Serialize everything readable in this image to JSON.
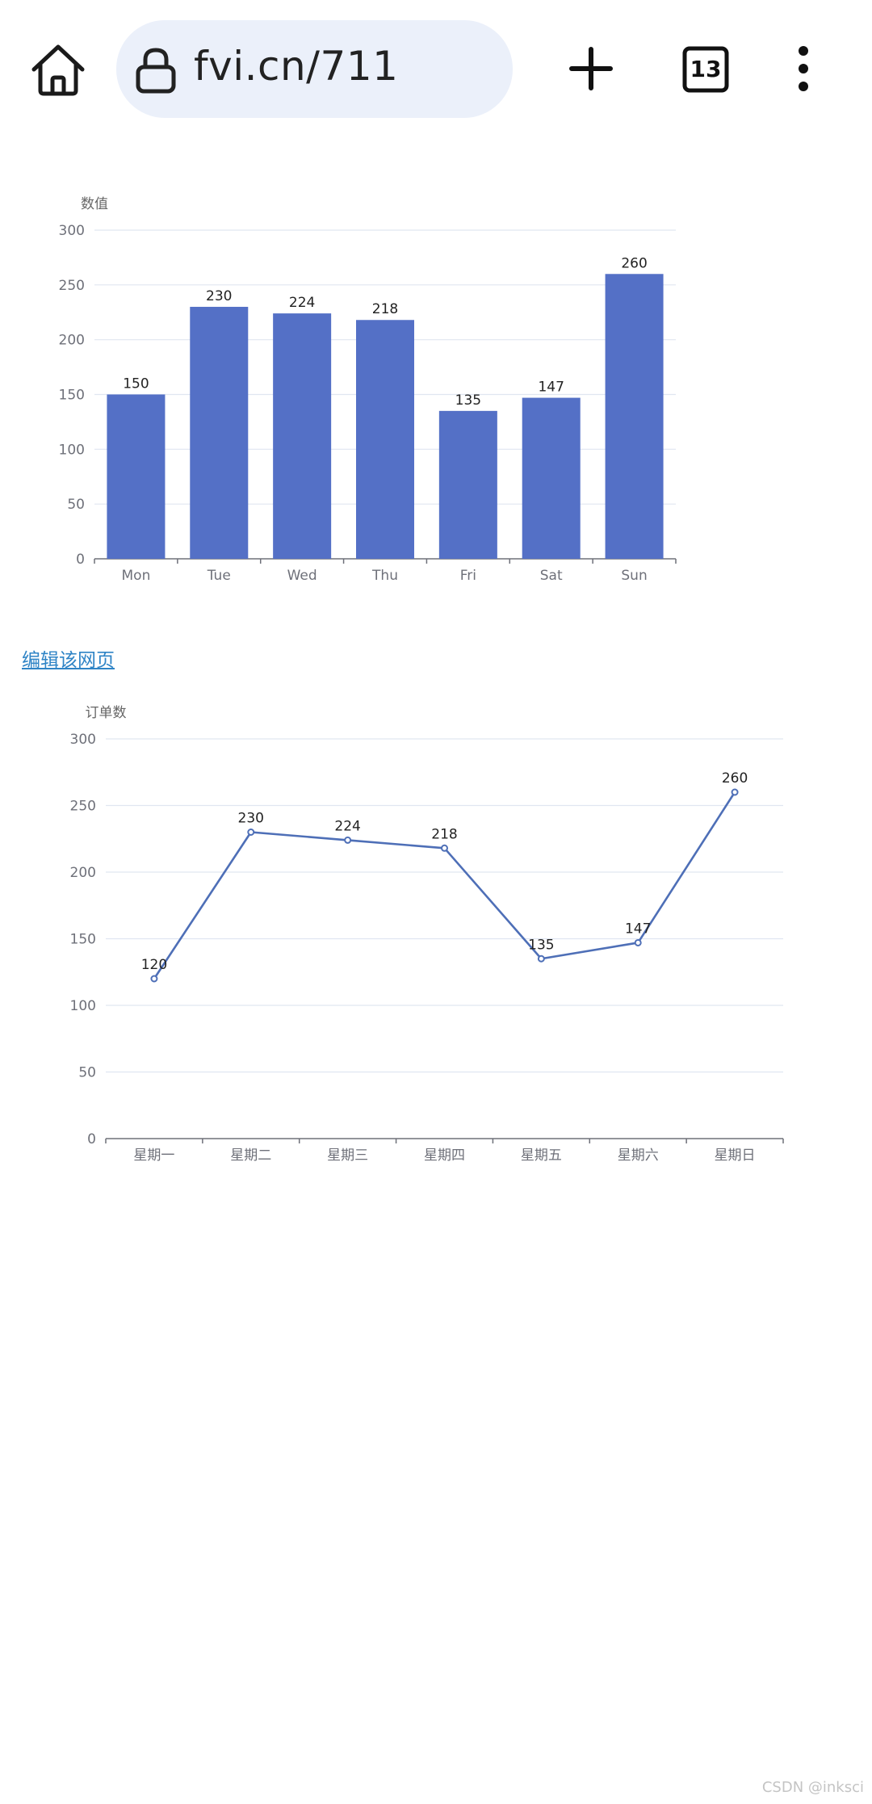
{
  "browser": {
    "url": "fvi.cn/711",
    "tab_count": "13",
    "icons": [
      "home-icon",
      "lock-icon",
      "plus-icon",
      "tabs-icon",
      "more-vert-icon"
    ]
  },
  "link": {
    "edit": "编辑该网页"
  },
  "watermark": "CSDN @inksci",
  "chart_data": [
    {
      "type": "bar",
      "title": "",
      "ylabel": "数值",
      "categories": [
        "Mon",
        "Tue",
        "Wed",
        "Thu",
        "Fri",
        "Sat",
        "Sun"
      ],
      "values": [
        150,
        230,
        224,
        218,
        135,
        147,
        260
      ],
      "ylim": [
        0,
        300
      ],
      "yticks": [
        0,
        50,
        100,
        150,
        200,
        250,
        300
      ],
      "color": "#5470c6",
      "grid": true,
      "data_labels": true
    },
    {
      "type": "line",
      "title": "",
      "ylabel": "订单数",
      "categories": [
        "星期一",
        "星期二",
        "星期三",
        "星期四",
        "星期五",
        "星期六",
        "星期日"
      ],
      "values": [
        120,
        230,
        224,
        218,
        135,
        147,
        260
      ],
      "ylim": [
        0,
        300
      ],
      "yticks": [
        0,
        50,
        100,
        150,
        200,
        250,
        300
      ],
      "color": "#4e6fb7",
      "grid": true,
      "data_labels": true
    }
  ]
}
